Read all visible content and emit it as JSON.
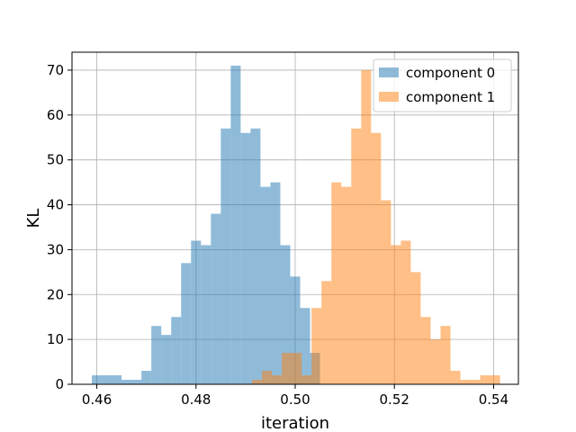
{
  "chart_data": {
    "type": "bar",
    "subtype": "overlapping-histogram",
    "xlabel": "iteration",
    "ylabel": "KL",
    "xlim": [
      0.455,
      0.545
    ],
    "ylim": [
      0,
      74
    ],
    "xticks": [
      0.46,
      0.48,
      0.5,
      0.52,
      0.54
    ],
    "xtick_labels": [
      "0.46",
      "0.48",
      "0.50",
      "0.52",
      "0.54"
    ],
    "yticks": [
      0,
      10,
      20,
      30,
      40,
      50,
      60,
      70
    ],
    "ytick_labels": [
      "0",
      "10",
      "20",
      "30",
      "40",
      "50",
      "60",
      "70"
    ],
    "grid": true,
    "legend_position": "top-right",
    "series": [
      {
        "name": "component 0",
        "color": "#1f77b4",
        "alpha": 0.5,
        "bin_start": 0.459,
        "bin_width": 0.002,
        "counts": [
          2,
          2,
          2,
          1,
          1,
          3,
          13,
          11,
          15,
          27,
          32,
          31,
          38,
          57,
          71,
          56,
          57,
          44,
          45,
          31,
          24,
          17,
          7
        ]
      },
      {
        "name": "component 1",
        "color": "#ff7f0e",
        "alpha": 0.5,
        "bin_start": 0.4913,
        "bin_width": 0.002,
        "counts": [
          1,
          3,
          2,
          7,
          7,
          2,
          17,
          23,
          45,
          44,
          57,
          70,
          56,
          41,
          31,
          32,
          25,
          15,
          10,
          13,
          3,
          1,
          1,
          2,
          2
        ]
      }
    ]
  }
}
